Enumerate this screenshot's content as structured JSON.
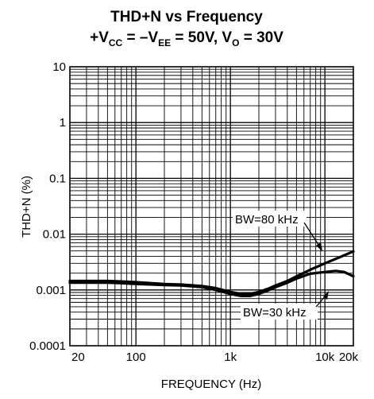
{
  "chart_data": {
    "type": "line",
    "title_line1": "THD+N vs Frequency",
    "title_line2": {
      "plus": "+V",
      "cc": "CC",
      "eq": " = –V",
      "ee": "EE",
      "mid": " = 50V, V",
      "o": "O",
      "end": " = 30V"
    },
    "xlabel": "FREQUENCY (Hz)",
    "ylabel": "THD+N (%)",
    "x_scale": "log",
    "y_scale": "log",
    "xlim": [
      20,
      20000
    ],
    "ylim": [
      0.0001,
      10
    ],
    "grid": true,
    "x_ticks": [
      {
        "value": 20,
        "label": "20"
      },
      {
        "value": 100,
        "label": "100"
      },
      {
        "value": 1000,
        "label": "1k"
      },
      {
        "value": 10000,
        "label": "10k"
      },
      {
        "value": 20000,
        "label": "20k"
      }
    ],
    "y_ticks": [
      {
        "value": 0.0001,
        "label": "0.0001"
      },
      {
        "value": 0.001,
        "label": "0.001"
      },
      {
        "value": 0.01,
        "label": "0.01"
      },
      {
        "value": 0.1,
        "label": "0.1"
      },
      {
        "value": 1,
        "label": "1"
      },
      {
        "value": 10,
        "label": "10"
      }
    ],
    "series": [
      {
        "name": "BW=80 kHz",
        "x": [
          20,
          30,
          50,
          70,
          100,
          150,
          200,
          300,
          500,
          700,
          1000,
          1300,
          1600,
          2000,
          2500,
          3000,
          4000,
          5000,
          7000,
          10000,
          14000,
          20000
        ],
        "y": [
          0.00145,
          0.00145,
          0.00145,
          0.00142,
          0.00138,
          0.00132,
          0.00128,
          0.00125,
          0.00118,
          0.00108,
          0.00092,
          0.00085,
          0.00085,
          0.00092,
          0.00105,
          0.0012,
          0.00145,
          0.00175,
          0.0023,
          0.003,
          0.0038,
          0.0049
        ]
      },
      {
        "name": "BW=30 kHz",
        "x": [
          20,
          30,
          50,
          70,
          100,
          150,
          200,
          300,
          500,
          700,
          1000,
          1300,
          1600,
          2000,
          2500,
          3000,
          4000,
          5000,
          7000,
          10000,
          13000,
          16000,
          20000
        ],
        "y": [
          0.00135,
          0.00135,
          0.00135,
          0.00132,
          0.00128,
          0.00125,
          0.00122,
          0.0012,
          0.00112,
          0.001,
          0.00085,
          0.00078,
          0.00078,
          0.00085,
          0.00098,
          0.00112,
          0.00135,
          0.0016,
          0.00195,
          0.0021,
          0.0022,
          0.0021,
          0.00175
        ]
      }
    ],
    "annotations": [
      {
        "text": "BW=80 kHz",
        "series": "BW=80 kHz"
      },
      {
        "text": "BW=30 kHz",
        "series": "BW=30 kHz"
      }
    ]
  }
}
